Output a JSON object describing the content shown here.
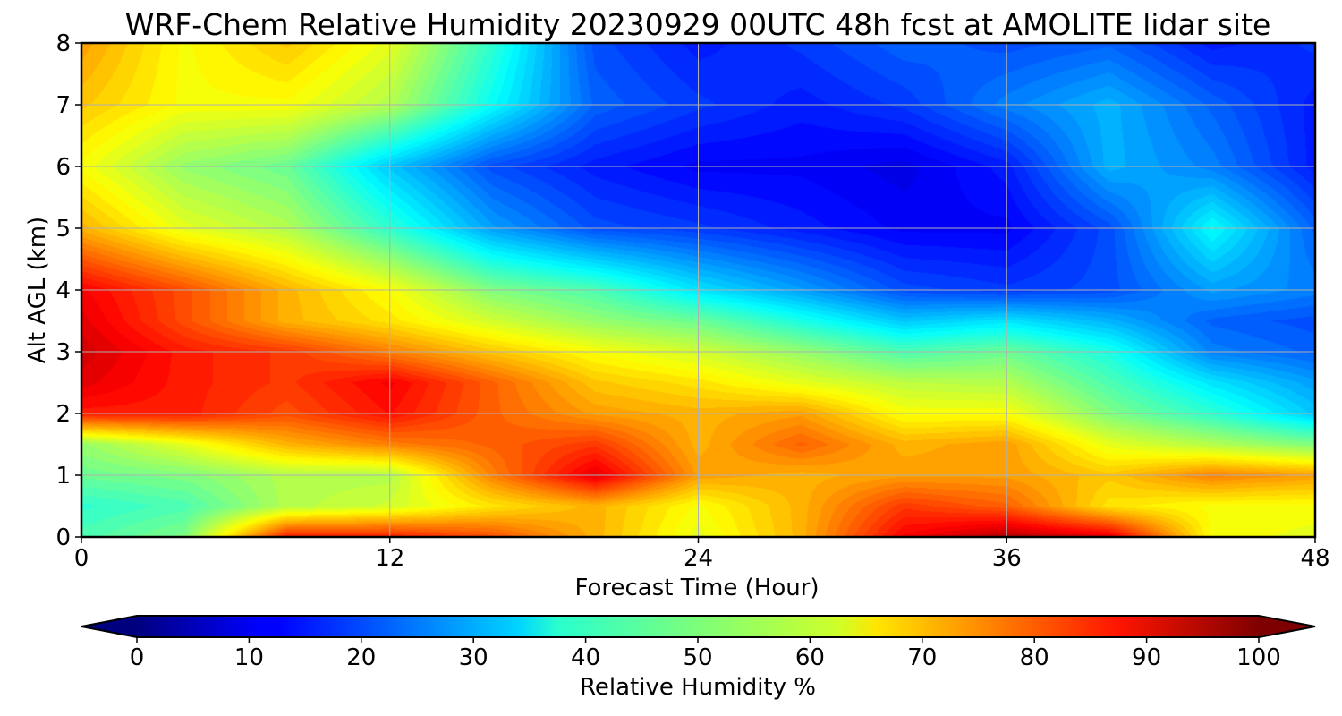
{
  "chart_data": {
    "type": "heatmap",
    "title": "WRF-Chem Relative Humidity 20230929 00UTC 48h fcst at AMOLITE lidar site",
    "xlabel": "Forecast Time (Hour)",
    "ylabel": "Alt AGL (km)",
    "xlim": [
      0,
      48
    ],
    "ylim": [
      0,
      8
    ],
    "xticks": [
      0,
      12,
      24,
      36,
      48
    ],
    "yticks": [
      0,
      1,
      2,
      3,
      4,
      5,
      6,
      7,
      8
    ],
    "grid": true,
    "colormap": "jet",
    "colorbar": {
      "label": "Relative Humidity %",
      "range": [
        0,
        100
      ],
      "ticks": [
        0,
        10,
        20,
        30,
        40,
        50,
        60,
        70,
        80,
        90,
        100
      ],
      "orientation": "horizontal",
      "extend": "both",
      "placement": "bottom"
    },
    "x": [
      0,
      4,
      8,
      12,
      16,
      20,
      24,
      28,
      32,
      36,
      40,
      44,
      48
    ],
    "y": [
      0,
      0.5,
      1,
      1.5,
      2,
      2.5,
      3,
      3.5,
      4,
      5,
      6,
      7,
      8
    ],
    "z": [
      [
        45,
        50,
        85,
        85,
        80,
        70,
        60,
        70,
        88,
        95,
        90,
        62,
        60
      ],
      [
        42,
        45,
        55,
        58,
        65,
        70,
        62,
        70,
        82,
        78,
        65,
        62,
        62
      ],
      [
        48,
        50,
        55,
        55,
        75,
        90,
        72,
        70,
        72,
        72,
        68,
        75,
        72
      ],
      [
        52,
        60,
        70,
        75,
        78,
        82,
        70,
        78,
        70,
        72,
        60,
        55,
        50
      ],
      [
        85,
        85,
        80,
        86,
        78,
        72,
        70,
        72,
        62,
        62,
        50,
        42,
        32
      ],
      [
        90,
        85,
        82,
        88,
        78,
        68,
        65,
        60,
        56,
        55,
        45,
        35,
        28
      ],
      [
        92,
        85,
        82,
        75,
        68,
        62,
        58,
        52,
        45,
        48,
        40,
        25,
        22
      ],
      [
        90,
        80,
        70,
        65,
        58,
        52,
        48,
        40,
        32,
        35,
        30,
        22,
        20
      ],
      [
        88,
        80,
        70,
        62,
        50,
        45,
        35,
        28,
        20,
        18,
        20,
        28,
        25
      ],
      [
        70,
        60,
        55,
        42,
        28,
        20,
        18,
        15,
        12,
        12,
        20,
        38,
        22
      ],
      [
        62,
        52,
        48,
        32,
        20,
        15,
        12,
        12,
        10,
        15,
        30,
        25,
        15
      ],
      [
        68,
        62,
        62,
        55,
        38,
        22,
        18,
        15,
        18,
        25,
        30,
        22,
        15
      ],
      [
        72,
        62,
        68,
        60,
        42,
        20,
        15,
        18,
        22,
        20,
        22,
        15,
        18
      ]
    ]
  }
}
